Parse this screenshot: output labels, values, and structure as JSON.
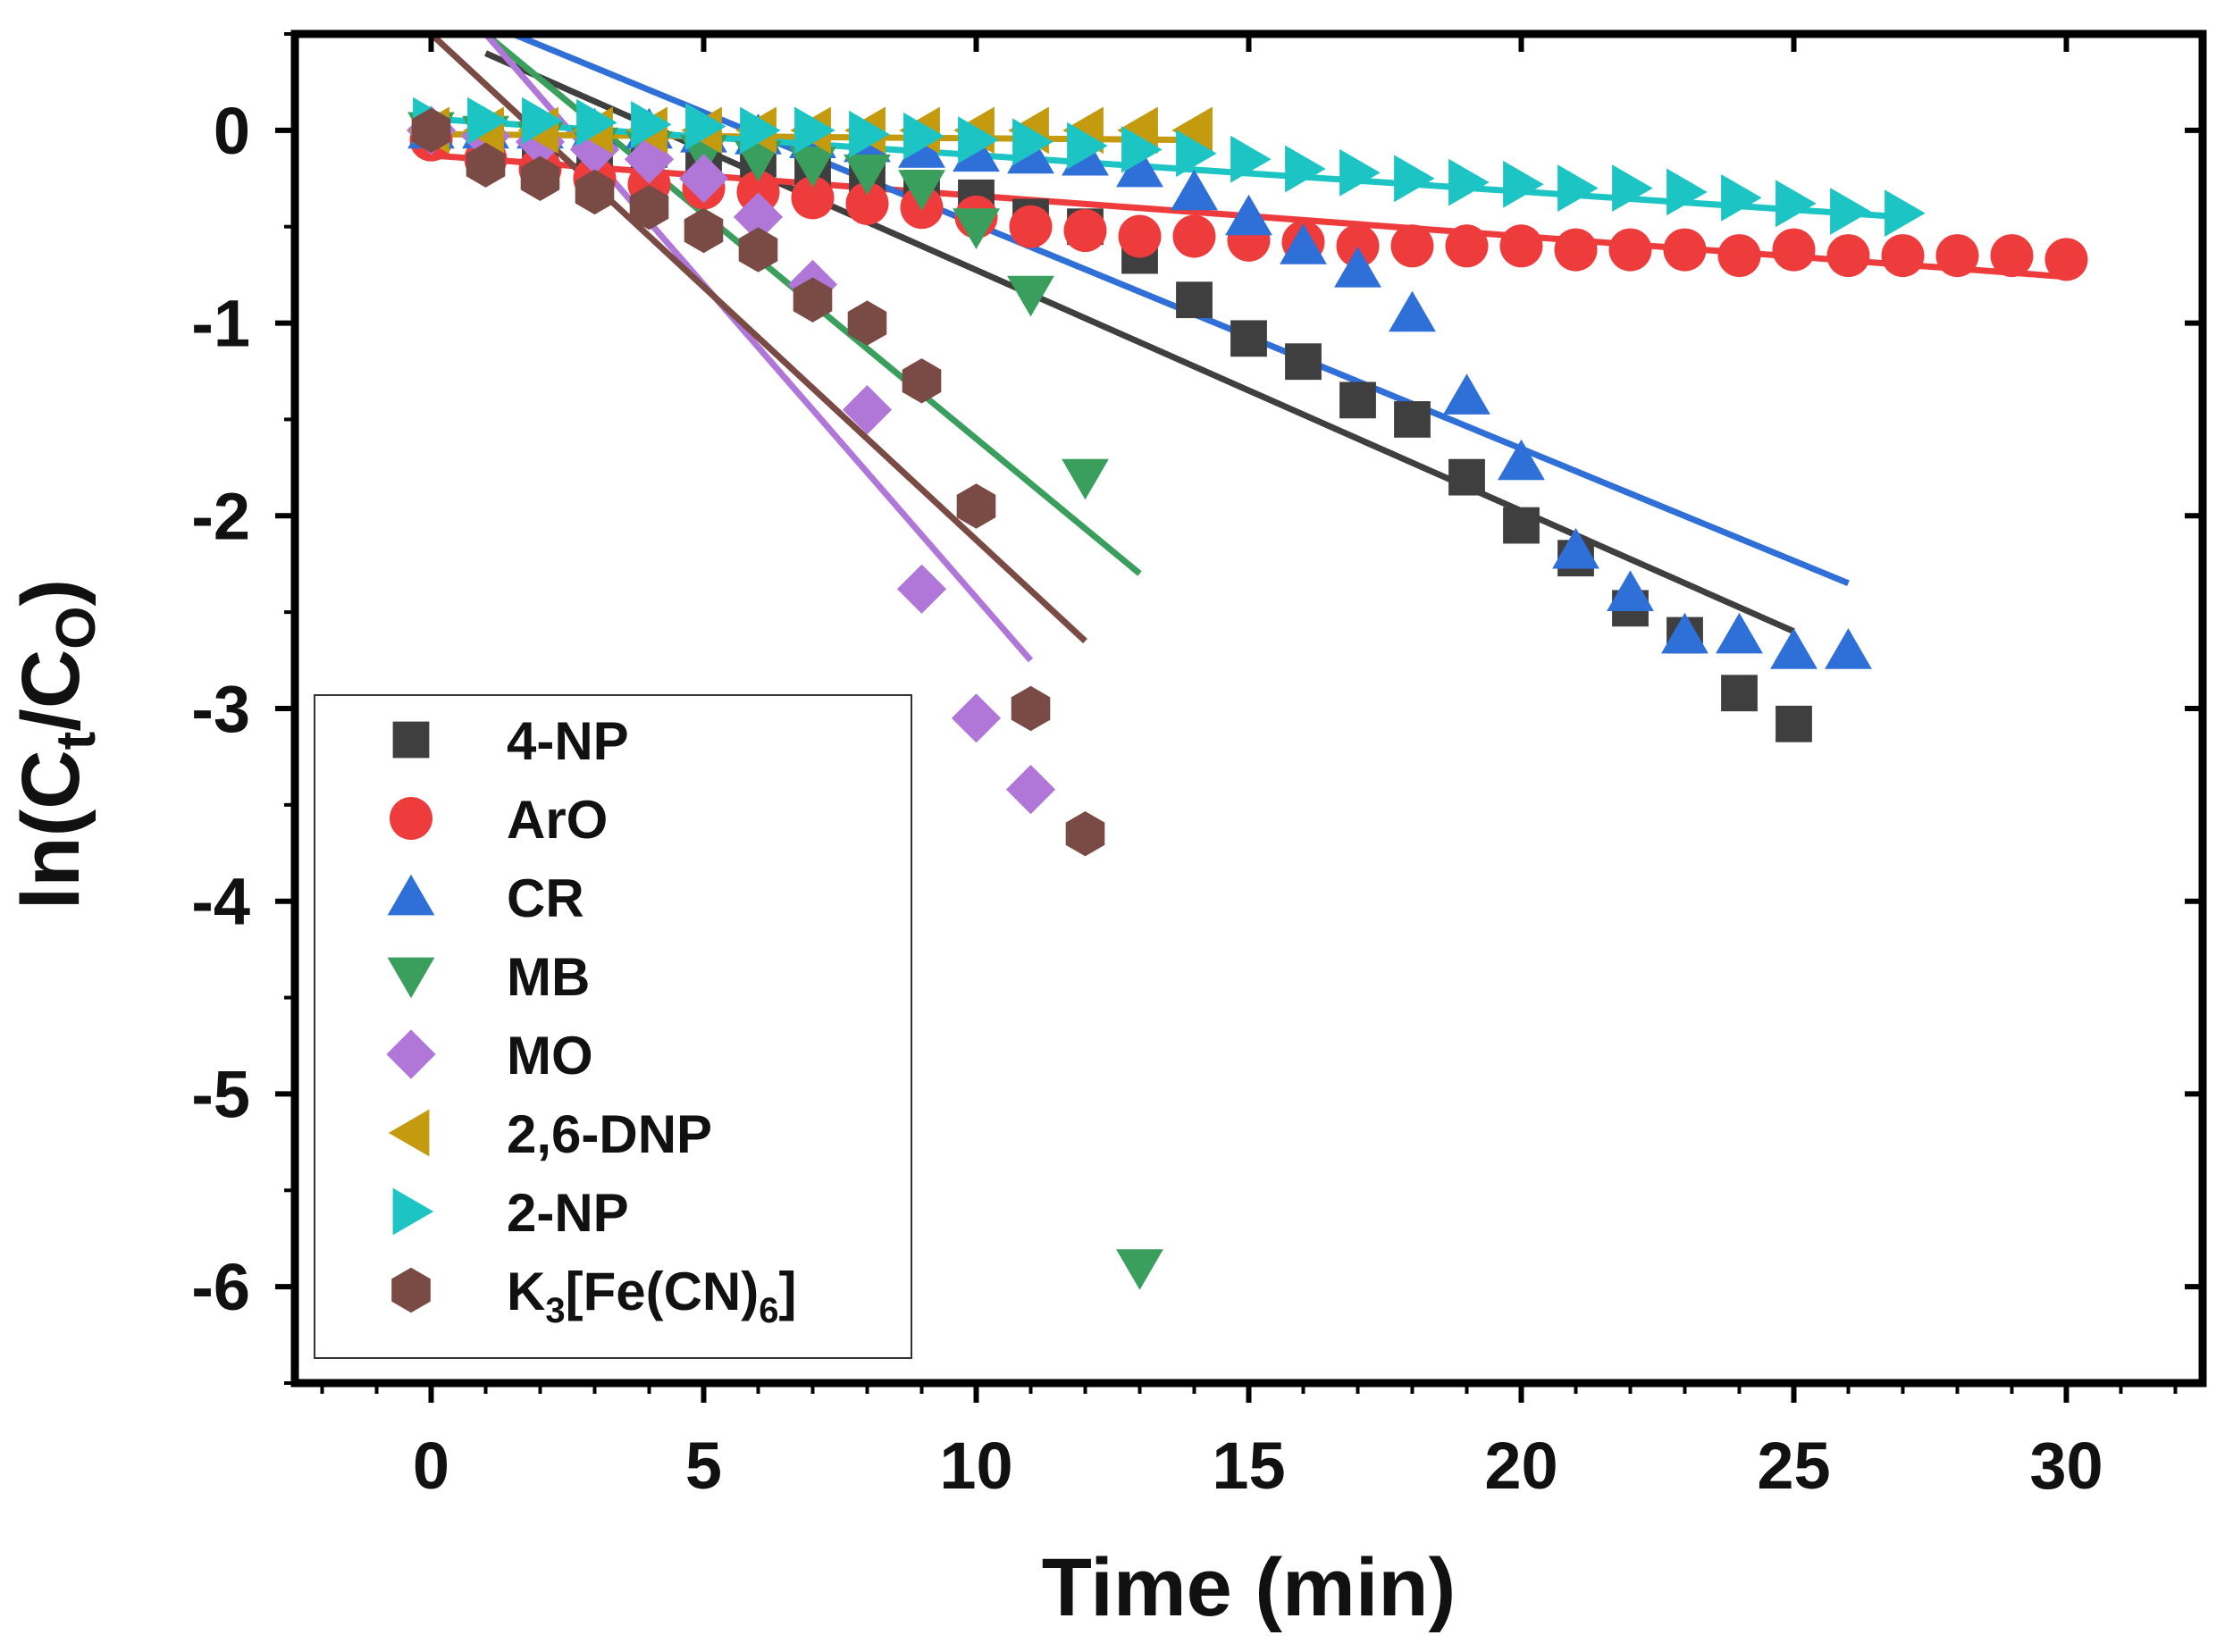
{
  "chart_data": {
    "type": "scatter",
    "title": "",
    "xlabel": "Time (min)",
    "ylabel": {
      "main": "ln(C",
      "sub1": "t",
      "mid": "/C",
      "sub2": "O",
      "end": ")"
    },
    "xlim": [
      -2.5,
      32.5
    ],
    "ylim": [
      -6.5,
      0.5
    ],
    "xticks": [
      0,
      5,
      10,
      15,
      20,
      25,
      30
    ],
    "yticks": [
      0,
      -1,
      -2,
      -3,
      -4,
      -5,
      -6
    ],
    "xtick_labels": [
      "0",
      "5",
      "10",
      "15",
      "20",
      "25",
      "30"
    ],
    "ytick_labels": [
      "0",
      "-1",
      "-2",
      "-3",
      "-4",
      "-5",
      "-6"
    ],
    "legend_position": "bottom-left",
    "series": [
      {
        "name": "4-NP",
        "marker": "square",
        "color": "#3f3f3f",
        "x": [
          0,
          1,
          2,
          3,
          4,
          5,
          6,
          7,
          8,
          9,
          10,
          11,
          12,
          13,
          14,
          15,
          16,
          17,
          18,
          19,
          20,
          21,
          22,
          23,
          24,
          25
        ],
        "y": [
          0,
          -0.05,
          -0.1,
          -0.1,
          -0.1,
          -0.12,
          -0.15,
          -0.2,
          -0.25,
          -0.3,
          -0.35,
          -0.45,
          -0.5,
          -0.65,
          -0.88,
          -1.08,
          -1.2,
          -1.4,
          -1.5,
          -1.8,
          -2.05,
          -2.22,
          -2.48,
          -2.62,
          -2.92,
          -3.08
        ],
        "fit": {
          "x": [
            1,
            25
          ],
          "y": [
            0.4,
            -2.6
          ]
        }
      },
      {
        "name": "ArO",
        "marker": "circle",
        "color": "#ee3b3b",
        "x": [
          0,
          1,
          2,
          3,
          4,
          5,
          6,
          7,
          8,
          9,
          10,
          11,
          12,
          13,
          14,
          15,
          16,
          17,
          18,
          19,
          20,
          21,
          22,
          23,
          24,
          25,
          26,
          27,
          28,
          29,
          30
        ],
        "y": [
          -0.05,
          -0.15,
          -0.2,
          -0.25,
          -0.28,
          -0.3,
          -0.32,
          -0.35,
          -0.38,
          -0.4,
          -0.45,
          -0.5,
          -0.52,
          -0.55,
          -0.55,
          -0.57,
          -0.58,
          -0.6,
          -0.6,
          -0.6,
          -0.6,
          -0.62,
          -0.62,
          -0.62,
          -0.65,
          -0.62,
          -0.65,
          -0.65,
          -0.65,
          -0.65,
          -0.67
        ],
        "fit": {
          "x": [
            0,
            30
          ],
          "y": [
            -0.13,
            -0.76
          ]
        }
      },
      {
        "name": "CR",
        "marker": "triangle-up",
        "color": "#2f6fd8",
        "x": [
          0,
          1,
          2,
          3,
          4,
          5,
          6,
          7,
          8,
          9,
          10,
          11,
          12,
          13,
          14,
          15,
          16,
          17,
          18,
          19,
          20,
          21,
          22,
          23,
          24,
          25,
          26
        ],
        "y": [
          0,
          0,
          0,
          0,
          0,
          -0.02,
          -0.03,
          -0.05,
          -0.07,
          -0.1,
          -0.12,
          -0.13,
          -0.14,
          -0.2,
          -0.32,
          -0.45,
          -0.6,
          -0.72,
          -0.95,
          -1.38,
          -1.72,
          -2.18,
          -2.4,
          -2.62,
          -2.62,
          -2.7,
          -2.7
        ],
        "fit": {
          "x": [
            1.5,
            26
          ],
          "y": [
            0.5,
            -2.35
          ]
        }
      },
      {
        "name": "MB",
        "marker": "triangle-down",
        "color": "#3a9e5c",
        "x": [
          0,
          1,
          2,
          3,
          4,
          5,
          6,
          7,
          8,
          9,
          10,
          11,
          12,
          13
        ],
        "y": [
          0,
          -0.02,
          -0.05,
          -0.08,
          -0.1,
          -0.12,
          -0.15,
          -0.18,
          -0.22,
          -0.3,
          -0.5,
          -0.85,
          -1.8,
          -5.9
        ],
        "fit": {
          "x": [
            1,
            13
          ],
          "y": [
            0.5,
            -2.3
          ]
        }
      },
      {
        "name": "MO",
        "marker": "diamond",
        "color": "#b076d8",
        "x": [
          0,
          1,
          2,
          3,
          4,
          5,
          6,
          7,
          8,
          9,
          10,
          11
        ],
        "y": [
          0,
          -0.03,
          -0.06,
          -0.1,
          -0.15,
          -0.25,
          -0.45,
          -0.8,
          -1.45,
          -2.38,
          -3.05,
          -3.42
        ],
        "fit": {
          "x": [
            1,
            11
          ],
          "y": [
            0.5,
            -2.75
          ]
        }
      },
      {
        "name": "2,6-DNP",
        "marker": "triangle-left",
        "color": "#c49a0f",
        "x": [
          0,
          1,
          2,
          3,
          4,
          5,
          6,
          7,
          8,
          9,
          10,
          11,
          12,
          13,
          14
        ],
        "y": [
          0,
          0,
          0,
          0,
          0,
          0,
          0,
          0,
          0,
          0,
          0,
          0,
          0,
          0,
          0
        ],
        "fit": {
          "x": [
            0,
            14
          ],
          "y": [
            -0.02,
            -0.05
          ]
        }
      },
      {
        "name": "2-NP",
        "marker": "triangle-right",
        "color": "#1dc4c4",
        "x": [
          0,
          1,
          2,
          3,
          4,
          5,
          6,
          7,
          8,
          9,
          10,
          11,
          12,
          13,
          14,
          15,
          16,
          17,
          18,
          19,
          20,
          21,
          22,
          23,
          24,
          25,
          26,
          27
        ],
        "y": [
          0.05,
          0.05,
          0.05,
          0.04,
          0.03,
          0.02,
          0.0,
          0.0,
          -0.02,
          -0.03,
          -0.05,
          -0.06,
          -0.08,
          -0.1,
          -0.12,
          -0.15,
          -0.2,
          -0.22,
          -0.25,
          -0.27,
          -0.28,
          -0.3,
          -0.3,
          -0.32,
          -0.35,
          -0.38,
          -0.42,
          -0.43
        ],
        "fit": {
          "x": [
            0,
            27
          ],
          "y": [
            0.06,
            -0.45
          ]
        }
      },
      {
        "name": "K3[Fe(CN)6]",
        "label_parts": [
          "K",
          "3",
          "[Fe(CN)",
          "6",
          "]"
        ],
        "marker": "hexagon",
        "color": "#7a4a44",
        "x": [
          0,
          1,
          2,
          3,
          4,
          5,
          6,
          7,
          8,
          9,
          10,
          11,
          12
        ],
        "y": [
          0,
          -0.18,
          -0.25,
          -0.32,
          -0.4,
          -0.52,
          -0.62,
          -0.88,
          -1.0,
          -1.3,
          -1.95,
          -3.0,
          -3.65
        ],
        "fit": {
          "x": [
            0,
            12
          ],
          "y": [
            0.5,
            -2.65
          ]
        }
      }
    ]
  }
}
